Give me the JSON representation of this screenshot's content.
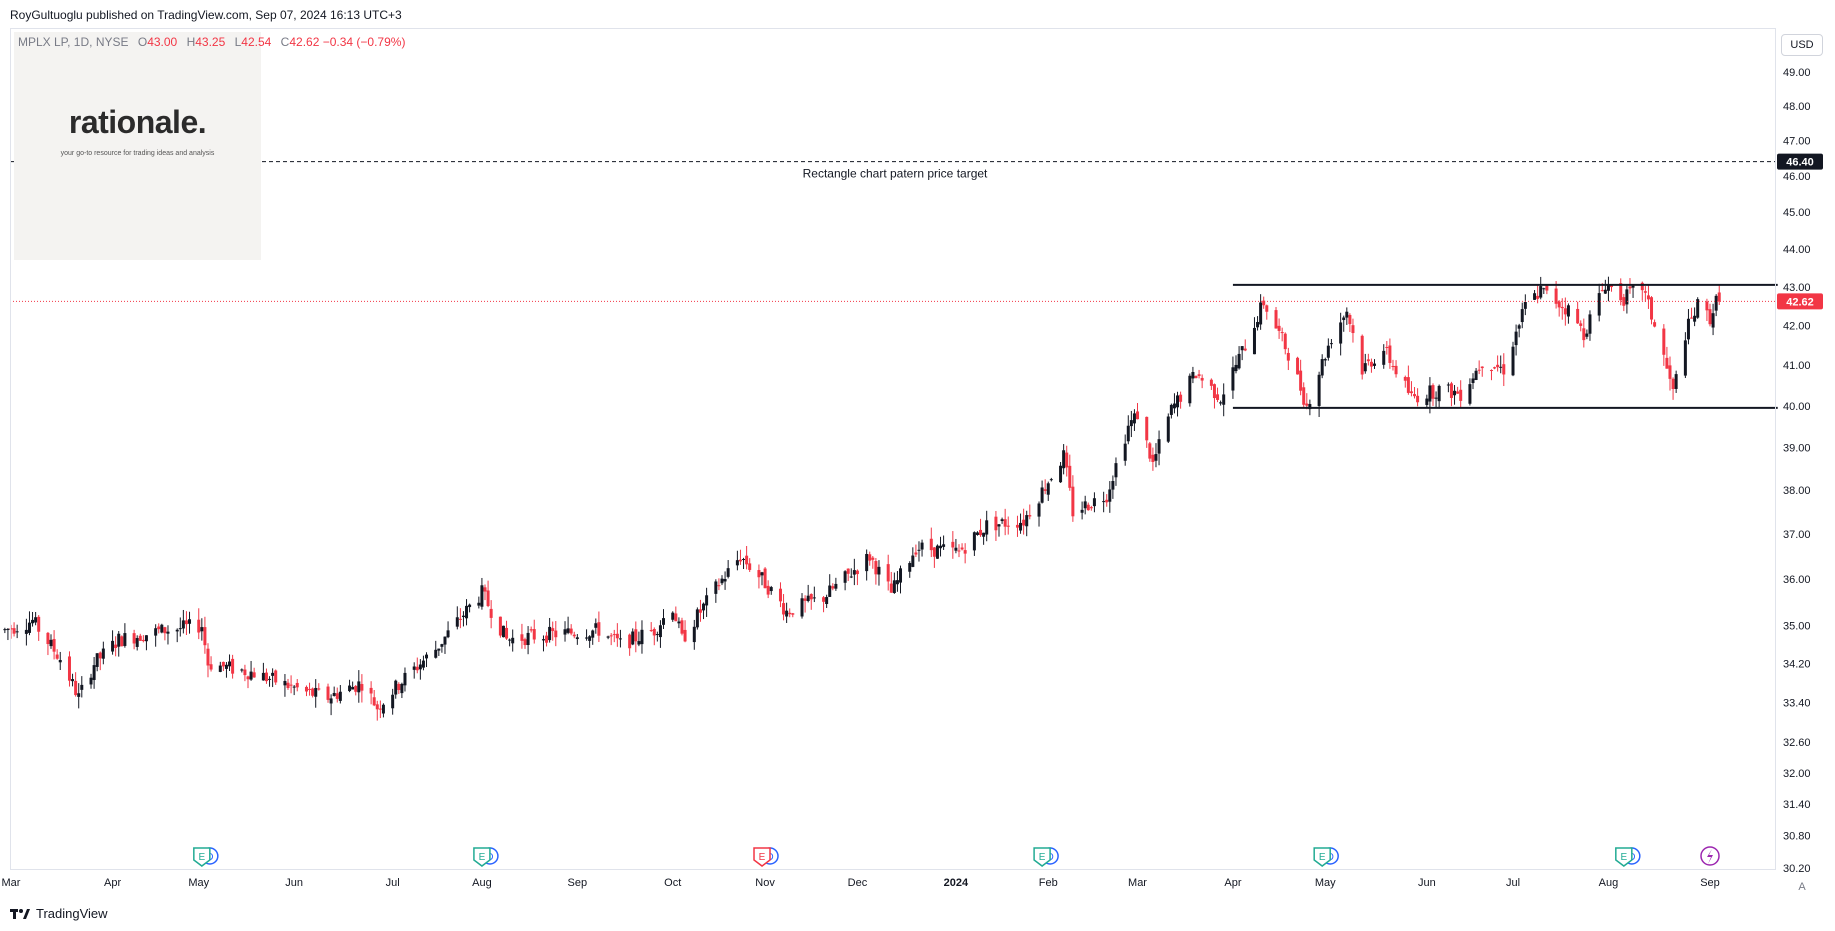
{
  "publisher": "RoyGultuoglu published on TradingView.com, Sep 07, 2024 16:13 UTC+3",
  "legend": {
    "symbol": "MPLX LP, 1D, NYSE",
    "open_label": "O",
    "open": "43.00",
    "high_label": "H",
    "high": "43.25",
    "low_label": "L",
    "low": "42.54",
    "close_label": "C",
    "close": "42.62",
    "change": "−0.34 (−0.79%)"
  },
  "logo": {
    "name": "rationale.",
    "tagline": "your go-to resource for trading ideas and analysis"
  },
  "currency_button": "USD",
  "footer_logo": "TradingView",
  "auto_button": "A",
  "colors": {
    "up": "#131722",
    "down": "#f23645",
    "current_price": "#f23645",
    "target_label_bg": "#131722",
    "event_earnings": "#22ab94",
    "event_dividend": "#2962ff",
    "event_earnings_miss": "#f23645",
    "event_split": "#9c27b0"
  },
  "chart_data": {
    "type": "candlestick",
    "y_axis": {
      "scale": "log",
      "ticks": [
        "49.00",
        "48.00",
        "47.00",
        "46.00",
        "45.00",
        "44.00",
        "43.00",
        "42.00",
        "41.00",
        "40.00",
        "39.00",
        "38.00",
        "37.00",
        "36.00",
        "35.00",
        "34.20",
        "33.40",
        "32.60",
        "32.00",
        "31.40",
        "30.80",
        "30.20"
      ],
      "tick_values": [
        49,
        48,
        47,
        46,
        45,
        44,
        43,
        42,
        41,
        40,
        39,
        38,
        37,
        36,
        35,
        34.2,
        33.4,
        32.6,
        32,
        31.4,
        30.8,
        30.2
      ],
      "range": [
        30.1,
        49.8
      ],
      "current_price": 42.62,
      "current_price_label": "42.62",
      "target_price": 46.4,
      "target_price_label": "46.40"
    },
    "x_axis": {
      "ticks": [
        {
          "label": "Mar",
          "date": "2023-03-01"
        },
        {
          "label": "Apr",
          "date": "2023-04-03"
        },
        {
          "label": "May",
          "date": "2023-05-01"
        },
        {
          "label": "Jun",
          "date": "2023-06-01"
        },
        {
          "label": "Jul",
          "date": "2023-07-03"
        },
        {
          "label": "Aug",
          "date": "2023-08-01"
        },
        {
          "label": "Sep",
          "date": "2023-09-01"
        },
        {
          "label": "Oct",
          "date": "2023-10-02"
        },
        {
          "label": "Nov",
          "date": "2023-11-01"
        },
        {
          "label": "Dec",
          "date": "2023-12-01"
        },
        {
          "label": "2024",
          "date": "2024-01-02",
          "bold": true
        },
        {
          "label": "Feb",
          "date": "2024-02-01"
        },
        {
          "label": "Mar",
          "date": "2024-03-01"
        },
        {
          "label": "Apr",
          "date": "2024-04-01"
        },
        {
          "label": "May",
          "date": "2024-05-01"
        },
        {
          "label": "Jun",
          "date": "2024-06-03"
        },
        {
          "label": "Jul",
          "date": "2024-07-01"
        },
        {
          "label": "Aug",
          "date": "2024-08-01"
        },
        {
          "label": "Sep",
          "date": "2024-09-03"
        }
      ]
    },
    "price_path": [
      {
        "date": "2023-02-27",
        "price": 34.9
      },
      {
        "date": "2023-03-08",
        "price": 35.1
      },
      {
        "date": "2023-03-17",
        "price": 34.3
      },
      {
        "date": "2023-03-23",
        "price": 33.5
      },
      {
        "date": "2023-03-28",
        "price": 34.2
      },
      {
        "date": "2023-04-05",
        "price": 34.7
      },
      {
        "date": "2023-04-20",
        "price": 34.9
      },
      {
        "date": "2023-05-02",
        "price": 35.0
      },
      {
        "date": "2023-05-04",
        "price": 34.2
      },
      {
        "date": "2023-05-19",
        "price": 34.0
      },
      {
        "date": "2023-06-05",
        "price": 33.6
      },
      {
        "date": "2023-06-12",
        "price": 33.5
      },
      {
        "date": "2023-06-23",
        "price": 33.8
      },
      {
        "date": "2023-06-28",
        "price": 33.3
      },
      {
        "date": "2023-07-07",
        "price": 33.9
      },
      {
        "date": "2023-07-17",
        "price": 34.5
      },
      {
        "date": "2023-07-28",
        "price": 35.4
      },
      {
        "date": "2023-08-01",
        "price": 35.7
      },
      {
        "date": "2023-08-09",
        "price": 34.7
      },
      {
        "date": "2023-08-22",
        "price": 34.8
      },
      {
        "date": "2023-09-08",
        "price": 34.9
      },
      {
        "date": "2023-09-15",
        "price": 34.6
      },
      {
        "date": "2023-09-26",
        "price": 34.9
      },
      {
        "date": "2023-10-02",
        "price": 35.4
      },
      {
        "date": "2023-10-05",
        "price": 34.7
      },
      {
        "date": "2023-10-17",
        "price": 35.9
      },
      {
        "date": "2023-10-24",
        "price": 36.5
      },
      {
        "date": "2023-10-31",
        "price": 36.0
      },
      {
        "date": "2023-11-08",
        "price": 35.3
      },
      {
        "date": "2023-11-20",
        "price": 35.6
      },
      {
        "date": "2023-12-05",
        "price": 36.5
      },
      {
        "date": "2023-12-12",
        "price": 35.7
      },
      {
        "date": "2023-12-20",
        "price": 36.7
      },
      {
        "date": "2024-01-03",
        "price": 36.6
      },
      {
        "date": "2024-01-12",
        "price": 37.2
      },
      {
        "date": "2024-01-24",
        "price": 37.3
      },
      {
        "date": "2024-01-31",
        "price": 38.1
      },
      {
        "date": "2024-02-06",
        "price": 38.8
      },
      {
        "date": "2024-02-09",
        "price": 37.5
      },
      {
        "date": "2024-02-20",
        "price": 37.9
      },
      {
        "date": "2024-02-27",
        "price": 39.5
      },
      {
        "date": "2024-03-01",
        "price": 39.8
      },
      {
        "date": "2024-03-06",
        "price": 38.6
      },
      {
        "date": "2024-03-12",
        "price": 39.9
      },
      {
        "date": "2024-03-20",
        "price": 40.8
      },
      {
        "date": "2024-03-28",
        "price": 40.2
      },
      {
        "date": "2024-04-05",
        "price": 41.5
      },
      {
        "date": "2024-04-11",
        "price": 42.6
      },
      {
        "date": "2024-04-19",
        "price": 41.3
      },
      {
        "date": "2024-04-25",
        "price": 40.0
      },
      {
        "date": "2024-05-03",
        "price": 41.7
      },
      {
        "date": "2024-05-08",
        "price": 42.4
      },
      {
        "date": "2024-05-13",
        "price": 40.9
      },
      {
        "date": "2024-05-20",
        "price": 41.4
      },
      {
        "date": "2024-05-29",
        "price": 40.2
      },
      {
        "date": "2024-06-07",
        "price": 40.4
      },
      {
        "date": "2024-06-14",
        "price": 40.3
      },
      {
        "date": "2024-06-21",
        "price": 41.1
      },
      {
        "date": "2024-06-28",
        "price": 40.9
      },
      {
        "date": "2024-07-05",
        "price": 42.5
      },
      {
        "date": "2024-07-10",
        "price": 42.9
      },
      {
        "date": "2024-07-19",
        "price": 42.4
      },
      {
        "date": "2024-07-24",
        "price": 41.8
      },
      {
        "date": "2024-07-31",
        "price": 43.1
      },
      {
        "date": "2024-08-06",
        "price": 42.7
      },
      {
        "date": "2024-08-12",
        "price": 43.0
      },
      {
        "date": "2024-08-16",
        "price": 42.0
      },
      {
        "date": "2024-08-19",
        "price": 41.2
      },
      {
        "date": "2024-08-22",
        "price": 40.3
      },
      {
        "date": "2024-08-26",
        "price": 41.8
      },
      {
        "date": "2024-08-30",
        "price": 42.5
      },
      {
        "date": "2024-09-03",
        "price": 42.2
      },
      {
        "date": "2024-09-06",
        "price": 42.8
      }
    ],
    "pattern_lines": [
      {
        "name": "resistance",
        "price": 43.05,
        "from": "2024-04-01",
        "to": "2024-09-25"
      },
      {
        "name": "support",
        "price": 39.95,
        "from": "2024-04-01",
        "to": "2024-09-25"
      }
    ],
    "annotation": {
      "text": "Rectangle chart patern price target",
      "price": 46.4
    },
    "events": [
      {
        "date": "2023-05-02",
        "badges": [
          "E",
          "D"
        ]
      },
      {
        "date": "2023-08-01",
        "badges": [
          "E",
          "D"
        ]
      },
      {
        "date": "2023-10-31",
        "badges": [
          "E",
          "D"
        ]
      },
      {
        "date": "2024-01-30",
        "badges": [
          "E",
          "D"
        ]
      },
      {
        "date": "2024-04-30",
        "badges": [
          "E",
          "D"
        ]
      },
      {
        "date": "2024-08-06",
        "badges": [
          "E",
          "D"
        ]
      },
      {
        "date": "2024-09-03",
        "badges": [
          "split"
        ]
      }
    ]
  }
}
